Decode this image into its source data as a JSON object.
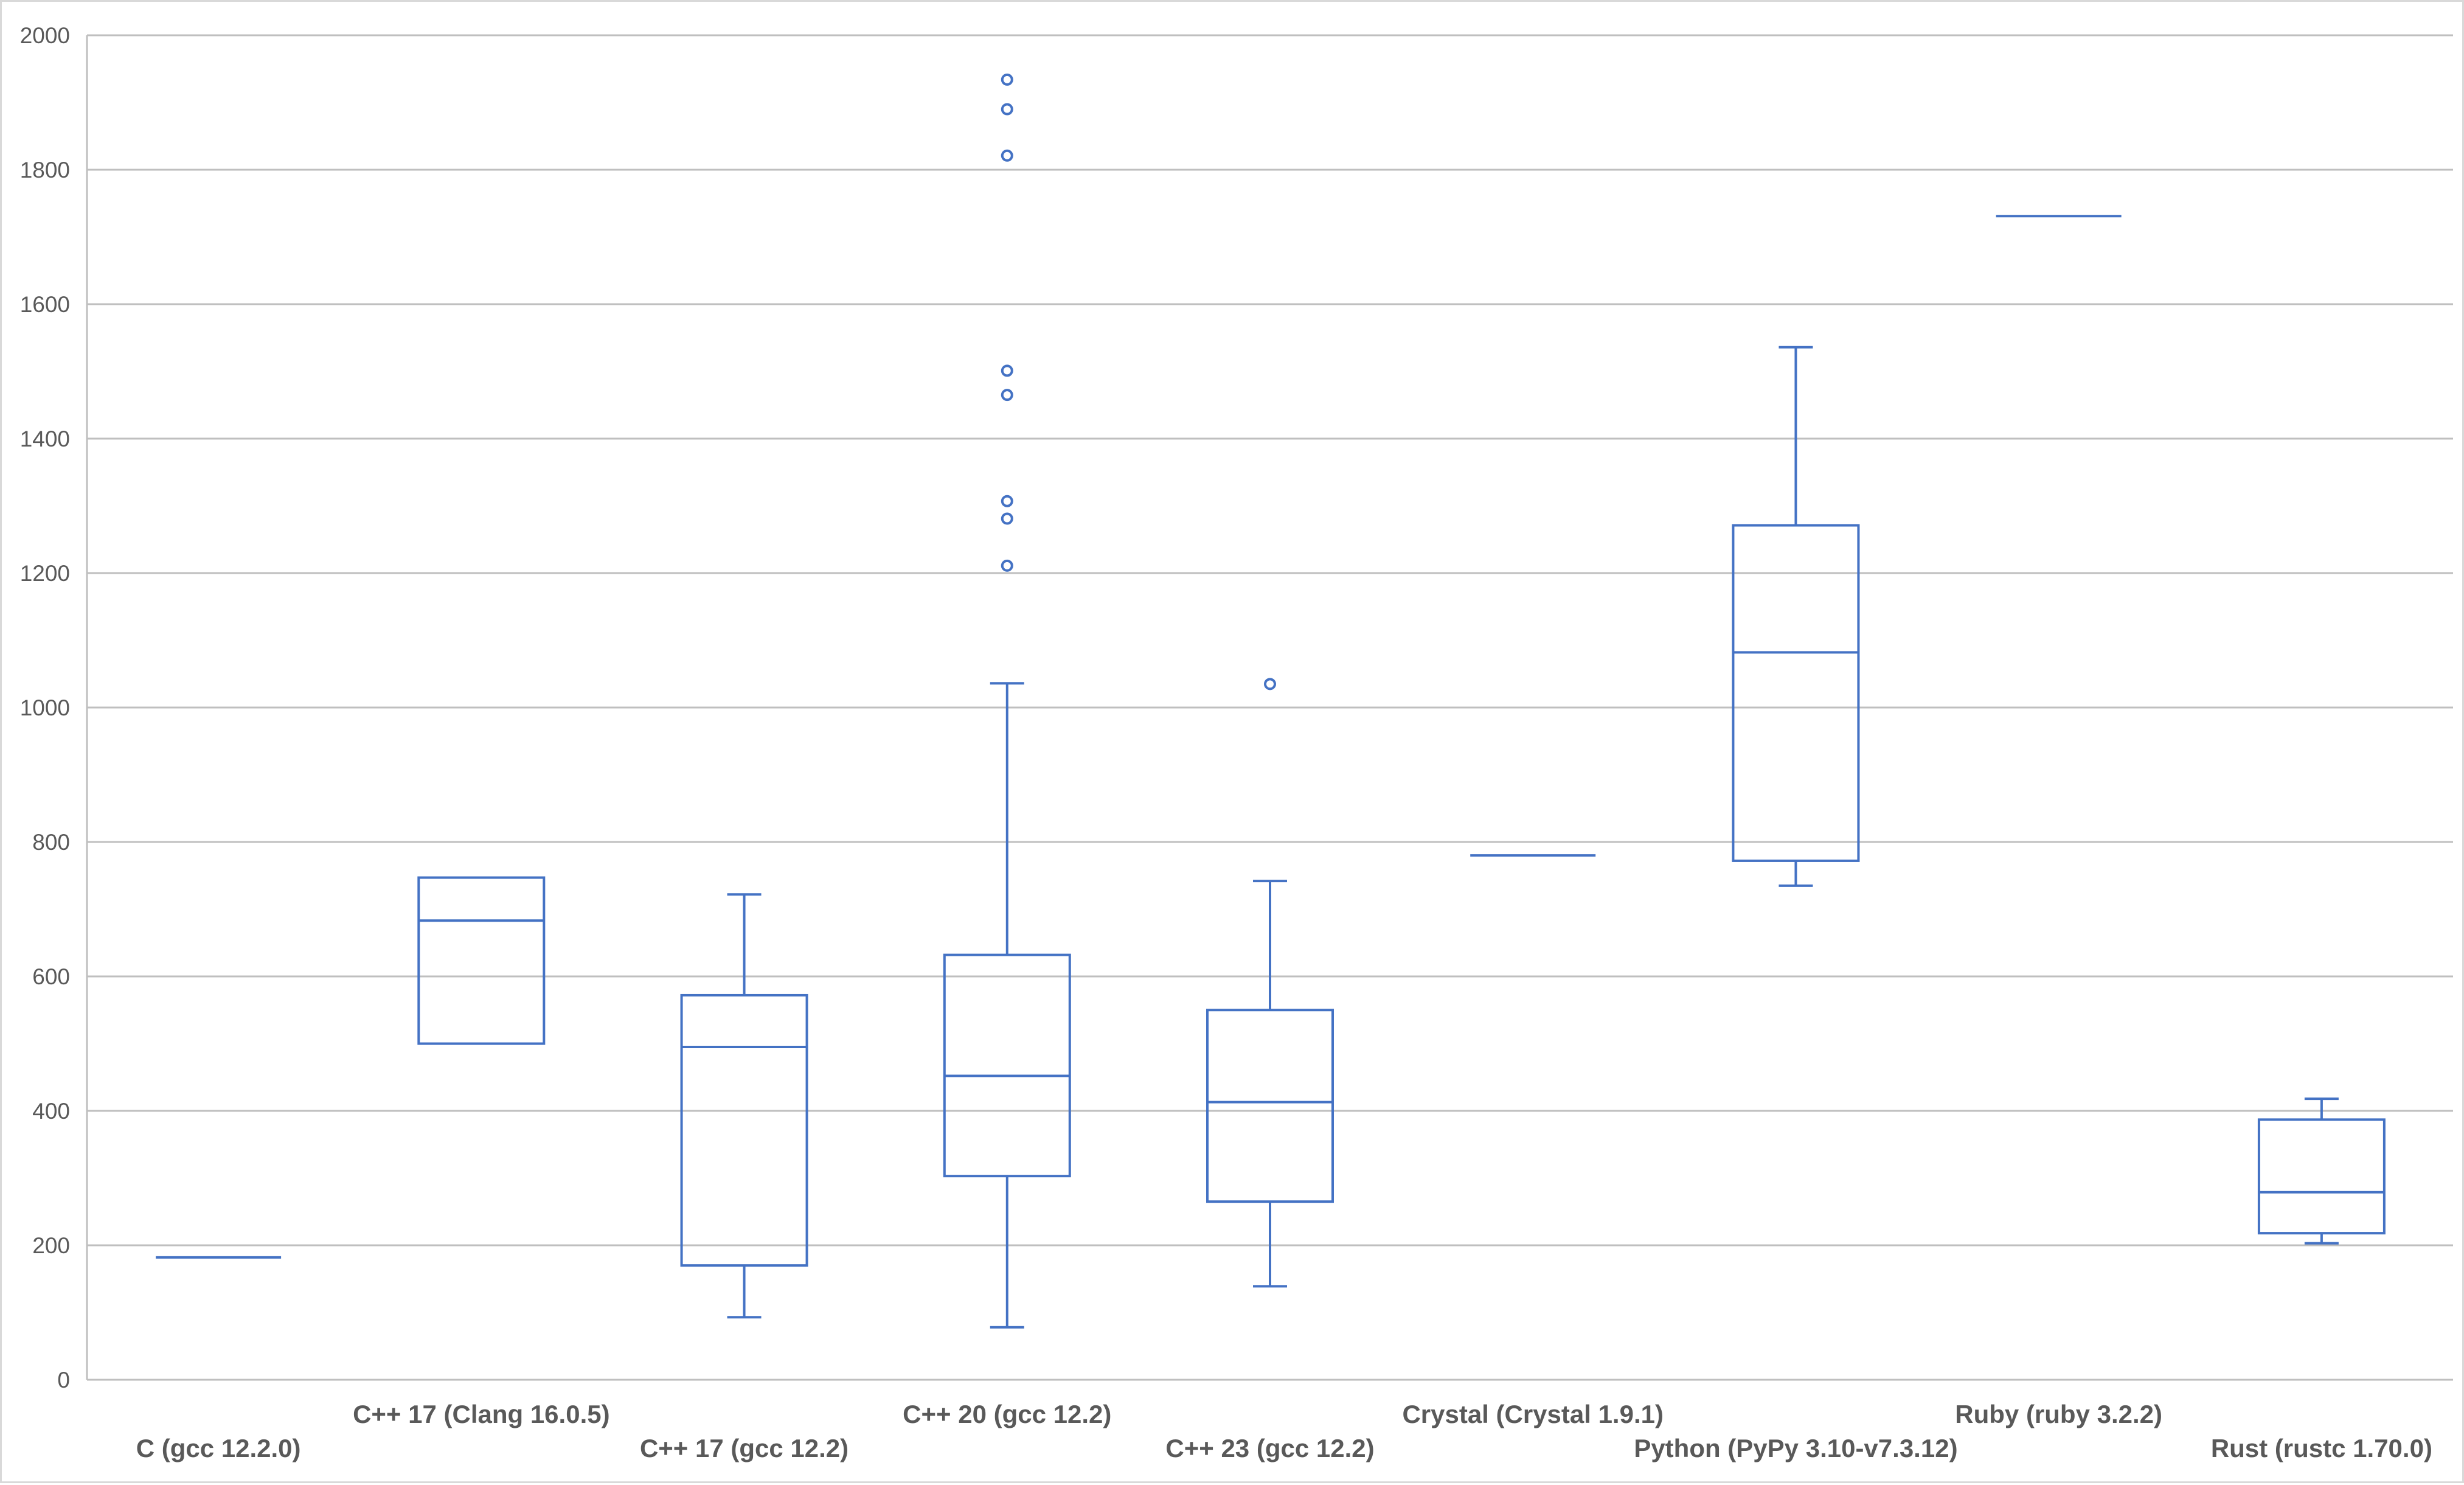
{
  "chart_data": {
    "type": "box",
    "title": "",
    "xlabel": "",
    "ylabel": "",
    "ylim": [
      0,
      2000
    ],
    "yticks": [
      0,
      200,
      400,
      600,
      800,
      1000,
      1200,
      1400,
      1600,
      1800,
      2000
    ],
    "grid": true,
    "legend": "none",
    "color": "#4472C4",
    "categories": [
      "C (gcc 12.2.0)",
      "C++ 17 (Clang 16.0.5)",
      "C++ 17 (gcc 12.2)",
      "C++ 20 (gcc 12.2)",
      "C++ 23 (gcc 12.2)",
      "Crystal (Crystal 1.9.1)",
      "Python (PyPy 3.10-v7.3.12)",
      "Ruby (ruby 3.2.2)",
      "Rust (rustc 1.70.0)"
    ],
    "boxes": [
      {
        "min": 182,
        "q1": 182,
        "median": 182,
        "q3": 182,
        "max": 182,
        "outliers": []
      },
      {
        "min": 500,
        "q1": 500,
        "median": 683,
        "q3": 747,
        "max": 747,
        "outliers": []
      },
      {
        "min": 93,
        "q1": 170,
        "median": 495,
        "q3": 572,
        "max": 722,
        "outliers": []
      },
      {
        "min": 78,
        "q1": 303,
        "median": 452,
        "q3": 632,
        "max": 1036,
        "outliers": [
          1211,
          1281,
          1307,
          1465,
          1501,
          1821,
          1890,
          1934
        ]
      },
      {
        "min": 139,
        "q1": 265,
        "median": 413,
        "q3": 550,
        "max": 742,
        "outliers": [
          1035
        ]
      },
      {
        "min": 780,
        "q1": 780,
        "median": 780,
        "q3": 780,
        "max": 780,
        "outliers": []
      },
      {
        "min": 735,
        "q1": 772,
        "median": 1082,
        "q3": 1271,
        "max": 1536,
        "outliers": []
      },
      {
        "min": 1731,
        "q1": 1731,
        "median": 1731,
        "q3": 1731,
        "max": 1731,
        "outliers": []
      },
      {
        "min": 203,
        "q1": 218,
        "median": 279,
        "q3": 387,
        "max": 418,
        "outliers": []
      }
    ]
  }
}
